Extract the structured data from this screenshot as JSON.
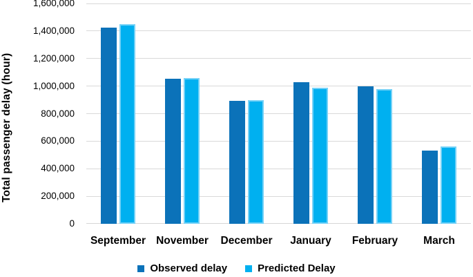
{
  "chart_data": {
    "type": "bar",
    "title": "",
    "xlabel": "",
    "ylabel": "Total passenger delay (hour)",
    "categories": [
      "September",
      "November",
      "December",
      "January",
      "February",
      "March"
    ],
    "series": [
      {
        "name": "Observed delay",
        "color": "#0B72B9",
        "border_color": "#0B72B9",
        "values": [
          1425000,
          1055000,
          895000,
          1030000,
          1000000,
          530000
        ]
      },
      {
        "name": "Predicted Delay",
        "color": "#00B0F0",
        "border_color": "#76D2F7",
        "values": [
          1450000,
          1060000,
          900000,
          990000,
          980000,
          560000
        ]
      }
    ],
    "ylim": [
      0,
      1600000
    ],
    "ytick_step": 200000,
    "ytick_labels": [
      "0",
      "200,000",
      "400,000",
      "600,000",
      "800,000",
      "1,000,000",
      "1,200,000",
      "1,400,000",
      "1,600,000"
    ],
    "grid": "horizontal",
    "gridline_color": "#D9D9D9",
    "axis_line_color": "#D6D6D6",
    "legend_position": "bottom"
  }
}
